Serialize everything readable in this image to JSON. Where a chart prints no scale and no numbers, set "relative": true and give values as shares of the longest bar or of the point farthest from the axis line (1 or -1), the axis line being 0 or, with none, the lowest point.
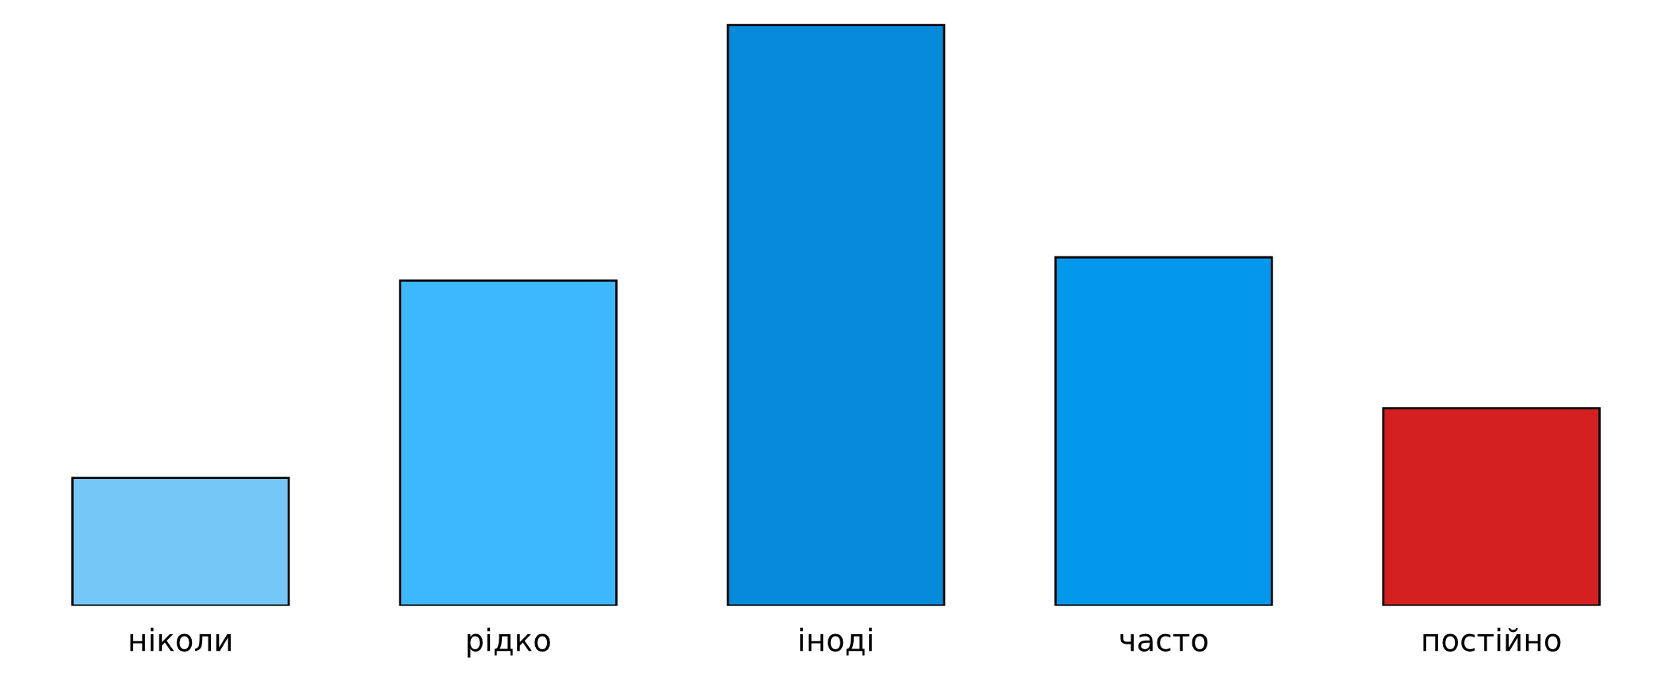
{
  "chart_data": {
    "type": "bar",
    "relative": true,
    "categories": [
      "ніколи",
      "рідко",
      "іноді",
      "часто",
      "постійно"
    ],
    "values": [
      0.22,
      0.56,
      1,
      0.6,
      0.34
    ],
    "colors": [
      "#74c7f7",
      "#3db7fd",
      "#058bd9",
      "#0398ec",
      "#d42020"
    ]
  }
}
